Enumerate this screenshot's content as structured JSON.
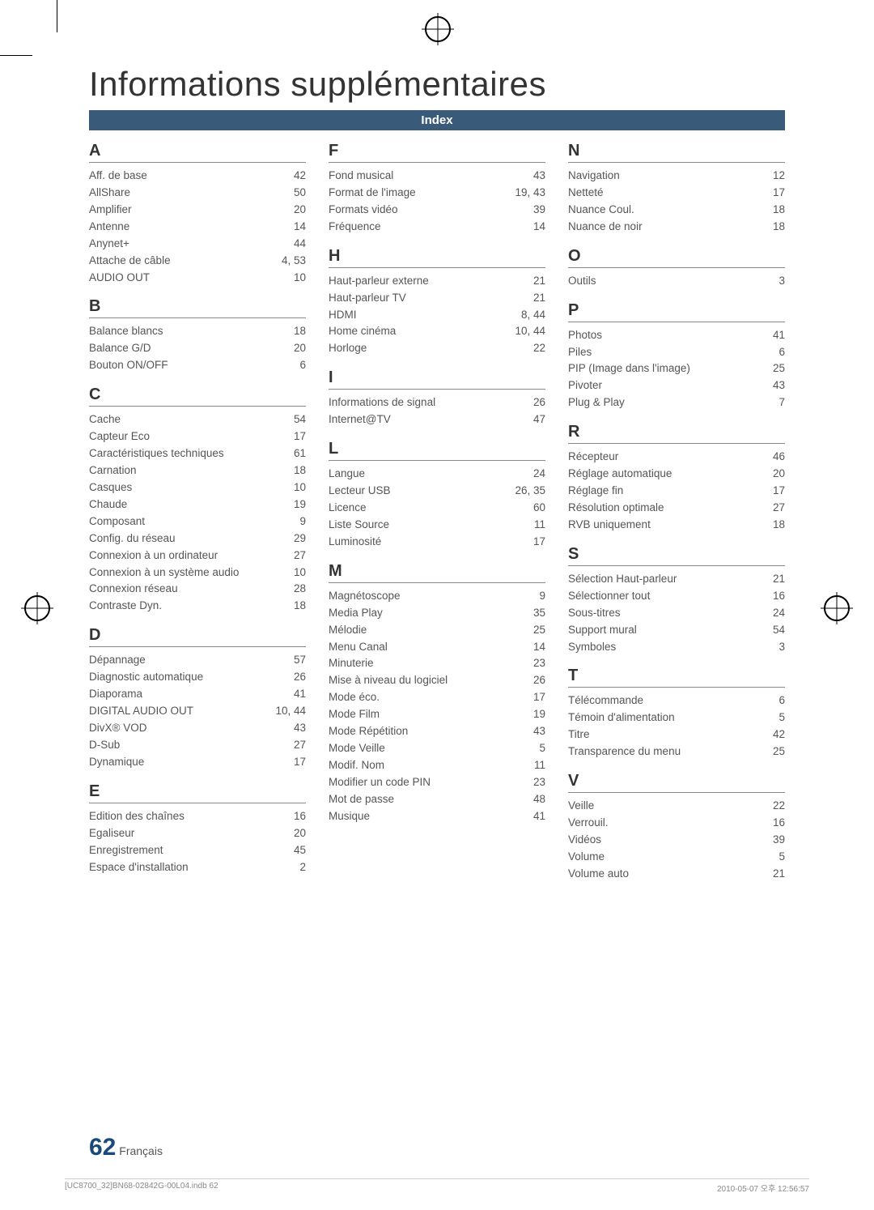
{
  "title": "Informations supplémentaires",
  "index_label": "Index",
  "page_number_big": "62",
  "page_number_lang": "Français",
  "footer_left": "[UC8700_32]BN68-02842G-00L04.indb   62",
  "footer_right": "2010-05-07   오후 12:56:57",
  "columns": [
    {
      "groups": [
        {
          "letter": "A",
          "entries": [
            {
              "label": "Aff. de base",
              "page": "42"
            },
            {
              "label": "AllShare",
              "page": "50"
            },
            {
              "label": "Amplifier",
              "page": "20"
            },
            {
              "label": "Antenne",
              "page": "14"
            },
            {
              "label": "Anynet+",
              "page": "44"
            },
            {
              "label": "Attache de câble",
              "page": "4, 53"
            },
            {
              "label": "AUDIO OUT",
              "page": "10"
            }
          ]
        },
        {
          "letter": "B",
          "entries": [
            {
              "label": "Balance blancs",
              "page": "18"
            },
            {
              "label": "Balance G/D",
              "page": "20"
            },
            {
              "label": "Bouton ON/OFF",
              "page": "6"
            }
          ]
        },
        {
          "letter": "C",
          "entries": [
            {
              "label": "Cache",
              "page": "54"
            },
            {
              "label": "Capteur Eco",
              "page": "17"
            },
            {
              "label": "Caractéristiques techniques",
              "page": "61"
            },
            {
              "label": "Carnation",
              "page": "18"
            },
            {
              "label": "Casques",
              "page": "10"
            },
            {
              "label": "Chaude",
              "page": "19"
            },
            {
              "label": "Composant",
              "page": "9"
            },
            {
              "label": "Config. du réseau",
              "page": "29"
            },
            {
              "label": "Connexion à un ordinateur",
              "page": "27"
            },
            {
              "label": "Connexion à un système audio",
              "page": "10"
            },
            {
              "label": "Connexion réseau",
              "page": "28"
            },
            {
              "label": "Contraste Dyn.",
              "page": "18"
            }
          ]
        },
        {
          "letter": "D",
          "entries": [
            {
              "label": "Dépannage",
              "page": "57"
            },
            {
              "label": "Diagnostic automatique",
              "page": "26"
            },
            {
              "label": "Diaporama",
              "page": "41"
            },
            {
              "label": "DIGITAL AUDIO OUT",
              "page": "10, 44"
            },
            {
              "label": "DivX® VOD",
              "page": "43"
            },
            {
              "label": "D-Sub",
              "page": "27"
            },
            {
              "label": "Dynamique",
              "page": "17"
            }
          ]
        },
        {
          "letter": "E",
          "entries": [
            {
              "label": "Edition des chaînes",
              "page": "16"
            },
            {
              "label": "Egaliseur",
              "page": "20"
            },
            {
              "label": "Enregistrement",
              "page": "45"
            },
            {
              "label": "Espace d'installation",
              "page": "2"
            }
          ]
        }
      ]
    },
    {
      "groups": [
        {
          "letter": "F",
          "entries": [
            {
              "label": "Fond musical",
              "page": "43"
            },
            {
              "label": "Format de l'image",
              "page": "19, 43"
            },
            {
              "label": "Formats vidéo",
              "page": "39"
            },
            {
              "label": "Fréquence",
              "page": "14"
            }
          ]
        },
        {
          "letter": "H",
          "entries": [
            {
              "label": "Haut-parleur externe",
              "page": "21"
            },
            {
              "label": "Haut-parleur TV",
              "page": "21"
            },
            {
              "label": "HDMI",
              "page": "8, 44"
            },
            {
              "label": "Home cinéma",
              "page": "10, 44"
            },
            {
              "label": "Horloge",
              "page": "22"
            }
          ]
        },
        {
          "letter": "I",
          "entries": [
            {
              "label": "Informations de signal",
              "page": "26"
            },
            {
              "label": "Internet@TV",
              "page": "47"
            }
          ]
        },
        {
          "letter": "L",
          "entries": [
            {
              "label": "Langue",
              "page": "24"
            },
            {
              "label": "Lecteur USB",
              "page": "26, 35"
            },
            {
              "label": "Licence",
              "page": "60"
            },
            {
              "label": "Liste Source",
              "page": "11"
            },
            {
              "label": "Luminosité",
              "page": "17"
            }
          ]
        },
        {
          "letter": "M",
          "entries": [
            {
              "label": "Magnétoscope",
              "page": "9"
            },
            {
              "label": "Media Play",
              "page": "35"
            },
            {
              "label": "Mélodie",
              "page": "25"
            },
            {
              "label": "Menu Canal",
              "page": "14"
            },
            {
              "label": "Minuterie",
              "page": "23"
            },
            {
              "label": "Mise à niveau du logiciel",
              "page": "26"
            },
            {
              "label": "Mode éco.",
              "page": "17"
            },
            {
              "label": "Mode Film",
              "page": "19"
            },
            {
              "label": "Mode Répétition",
              "page": "43"
            },
            {
              "label": "Mode Veille",
              "page": "5"
            },
            {
              "label": "Modif. Nom",
              "page": "11"
            },
            {
              "label": "Modifier un code PIN",
              "page": "23"
            },
            {
              "label": "Mot de passe",
              "page": "48"
            },
            {
              "label": "Musique",
              "page": "41"
            }
          ]
        }
      ]
    },
    {
      "groups": [
        {
          "letter": "N",
          "entries": [
            {
              "label": "Navigation",
              "page": "12"
            },
            {
              "label": "Netteté",
              "page": "17"
            },
            {
              "label": "Nuance Coul.",
              "page": "18"
            },
            {
              "label": "Nuance de noir",
              "page": "18"
            }
          ]
        },
        {
          "letter": "O",
          "entries": [
            {
              "label": "Outils",
              "page": "3"
            }
          ]
        },
        {
          "letter": "P",
          "entries": [
            {
              "label": "Photos",
              "page": "41"
            },
            {
              "label": "Piles",
              "page": "6"
            },
            {
              "label": "PIP (Image dans l'image)",
              "page": "25"
            },
            {
              "label": "Pivoter",
              "page": "43"
            },
            {
              "label": "Plug & Play",
              "page": "7"
            }
          ]
        },
        {
          "letter": "R",
          "entries": [
            {
              "label": "Récepteur",
              "page": "46"
            },
            {
              "label": "Réglage automatique",
              "page": "20"
            },
            {
              "label": "Réglage fin",
              "page": "17"
            },
            {
              "label": "Résolution optimale",
              "page": "27"
            },
            {
              "label": "RVB uniquement",
              "page": "18"
            }
          ]
        },
        {
          "letter": "S",
          "entries": [
            {
              "label": "Sélection Haut-parleur",
              "page": "21"
            },
            {
              "label": "Sélectionner tout",
              "page": "16"
            },
            {
              "label": "Sous-titres",
              "page": "24"
            },
            {
              "label": "Support mural",
              "page": "54"
            },
            {
              "label": "Symboles",
              "page": "3"
            }
          ]
        },
        {
          "letter": "T",
          "entries": [
            {
              "label": "Télécommande",
              "page": "6"
            },
            {
              "label": "Témoin d'alimentation",
              "page": "5"
            },
            {
              "label": "Titre",
              "page": "42"
            },
            {
              "label": "Transparence du menu",
              "page": "25"
            }
          ]
        },
        {
          "letter": "V",
          "entries": [
            {
              "label": "Veille",
              "page": "22"
            },
            {
              "label": "Verrouil.",
              "page": "16"
            },
            {
              "label": "Vidéos",
              "page": "39"
            },
            {
              "label": "Volume",
              "page": "5"
            },
            {
              "label": "Volume auto",
              "page": "21"
            }
          ]
        }
      ]
    }
  ]
}
